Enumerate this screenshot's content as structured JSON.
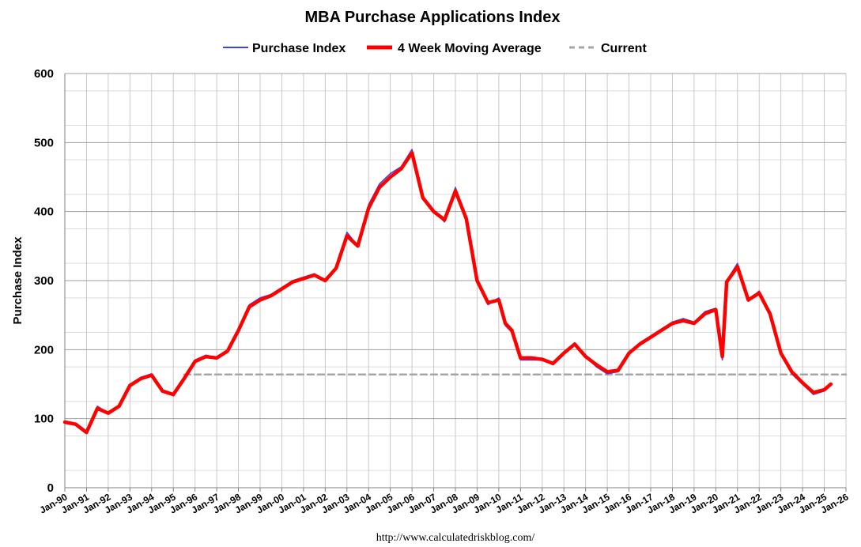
{
  "chart_data": {
    "type": "line",
    "title": "MBA Purchase Applications Index",
    "xlabel": "",
    "ylabel": "Purchase Index",
    "ylim": [
      0,
      600
    ],
    "yticks": [
      "0",
      "100",
      "200",
      "300",
      "400",
      "500",
      "600"
    ],
    "xlim": [
      1990,
      2026
    ],
    "xticks": [
      "Jan-90",
      "Jan-91",
      "Jan-92",
      "Jan-93",
      "Jan-94",
      "Jan-95",
      "Jan-96",
      "Jan-97",
      "Jan-98",
      "Jan-99",
      "Jan-00",
      "Jan-01",
      "Jan-02",
      "Jan-03",
      "Jan-04",
      "Jan-05",
      "Jan-06",
      "Jan-07",
      "Jan-08",
      "Jan-09",
      "Jan-10",
      "Jan-11",
      "Jan-12",
      "Jan-13",
      "Jan-14",
      "Jan-15",
      "Jan-16",
      "Jan-17",
      "Jan-18",
      "Jan-19",
      "Jan-20",
      "Jan-21",
      "Jan-22",
      "Jan-23",
      "Jan-24",
      "Jan-25",
      "Jan-26"
    ],
    "legend_position": "top-center",
    "grid": true,
    "colors": {
      "purchase_index": "#4040ee",
      "moving_average": "#ff0000",
      "current": "#a6a6a6"
    },
    "series": [
      {
        "name": "Purchase Index",
        "style": "thin-line",
        "x": [
          1990.0,
          1990.5,
          1991.0,
          1991.5,
          1992.0,
          1992.5,
          1993.0,
          1993.5,
          1994.0,
          1994.5,
          1995.0,
          1995.5,
          1996.0,
          1996.5,
          1997.0,
          1997.5,
          1998.0,
          1998.5,
          1999.0,
          1999.5,
          2000.0,
          2000.5,
          2001.0,
          2001.5,
          2002.0,
          2002.5,
          2003.0,
          2003.5,
          2004.0,
          2004.5,
          2005.0,
          2005.5,
          2006.0,
          2006.5,
          2007.0,
          2007.5,
          2008.0,
          2008.5,
          2009.0,
          2009.5,
          2010.0,
          2010.3,
          2010.6,
          2011.0,
          2011.5,
          2012.0,
          2012.5,
          2013.0,
          2013.5,
          2014.0,
          2014.5,
          2015.0,
          2015.5,
          2016.0,
          2016.5,
          2017.0,
          2017.5,
          2018.0,
          2018.5,
          2019.0,
          2019.5,
          2020.0,
          2020.3,
          2020.5,
          2021.0,
          2021.5,
          2022.0,
          2022.5,
          2023.0,
          2023.5,
          2024.0,
          2024.5,
          2025.0,
          2025.3
        ],
        "values": [
          95,
          92,
          80,
          118,
          108,
          120,
          150,
          160,
          165,
          140,
          133,
          160,
          185,
          192,
          188,
          200,
          230,
          265,
          275,
          280,
          290,
          300,
          305,
          310,
          300,
          320,
          370,
          350,
          410,
          440,
          455,
          465,
          490,
          420,
          400,
          385,
          435,
          390,
          300,
          265,
          275,
          235,
          225,
          185,
          185,
          185,
          178,
          195,
          210,
          190,
          175,
          165,
          168,
          195,
          210,
          220,
          230,
          240,
          245,
          240,
          255,
          260,
          185,
          300,
          325,
          270,
          285,
          250,
          195,
          165,
          150,
          135,
          140,
          150
        ]
      },
      {
        "name": "4 Week Moving Average",
        "style": "thick-line",
        "x": [
          1990.0,
          1990.5,
          1991.0,
          1991.5,
          1992.0,
          1992.5,
          1993.0,
          1993.5,
          1994.0,
          1994.5,
          1995.0,
          1995.5,
          1996.0,
          1996.5,
          1997.0,
          1997.5,
          1998.0,
          1998.5,
          1999.0,
          1999.5,
          2000.0,
          2000.5,
          2001.0,
          2001.5,
          2002.0,
          2002.5,
          2003.0,
          2003.5,
          2004.0,
          2004.5,
          2005.0,
          2005.5,
          2006.0,
          2006.5,
          2007.0,
          2007.5,
          2008.0,
          2008.5,
          2009.0,
          2009.5,
          2010.0,
          2010.3,
          2010.6,
          2011.0,
          2011.5,
          2012.0,
          2012.5,
          2013.0,
          2013.5,
          2014.0,
          2014.5,
          2015.0,
          2015.5,
          2016.0,
          2016.5,
          2017.0,
          2017.5,
          2018.0,
          2018.5,
          2019.0,
          2019.5,
          2020.0,
          2020.3,
          2020.5,
          2021.0,
          2021.5,
          2022.0,
          2022.5,
          2023.0,
          2023.5,
          2024.0,
          2024.5,
          2025.0,
          2025.3
        ],
        "values": [
          95,
          92,
          80,
          115,
          108,
          118,
          148,
          158,
          163,
          140,
          135,
          158,
          183,
          190,
          188,
          198,
          228,
          262,
          272,
          278,
          288,
          298,
          303,
          308,
          300,
          318,
          365,
          350,
          405,
          435,
          450,
          462,
          485,
          420,
          400,
          388,
          430,
          390,
          300,
          268,
          272,
          238,
          228,
          188,
          188,
          186,
          180,
          195,
          208,
          190,
          178,
          168,
          170,
          195,
          208,
          218,
          228,
          238,
          242,
          238,
          252,
          258,
          190,
          298,
          320,
          272,
          282,
          252,
          195,
          168,
          152,
          138,
          142,
          150
        ]
      },
      {
        "name": "Current",
        "style": "dashed",
        "x": [
          1995.5,
          2026
        ],
        "values": [
          164,
          164
        ]
      }
    ]
  },
  "footer": {
    "source_url": "http://www.calculatedriskblog.com/"
  }
}
